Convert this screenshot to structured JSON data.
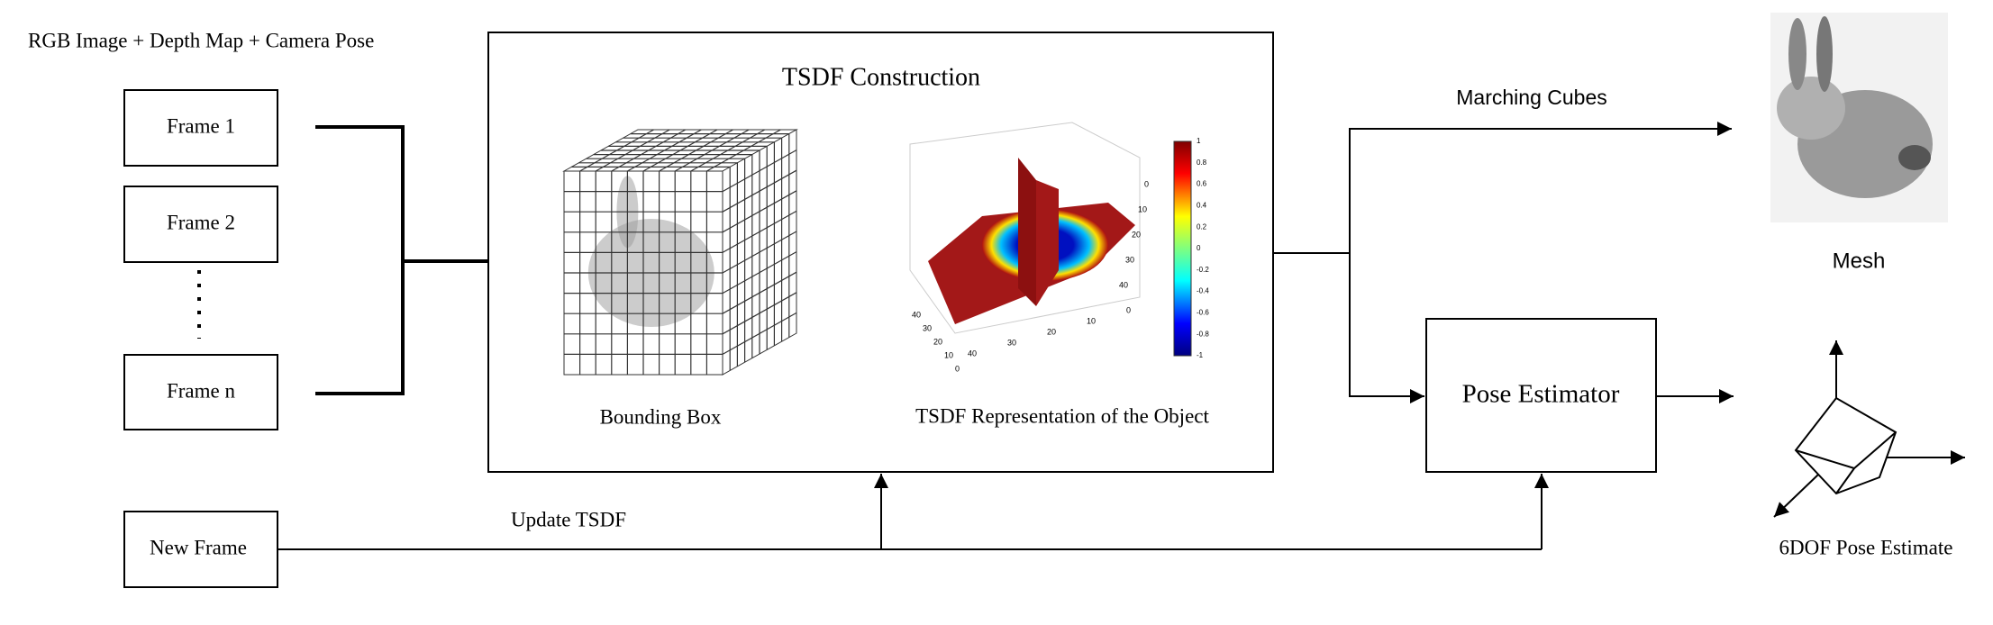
{
  "input_label": "RGB Image + Depth Map + Camera Pose",
  "frames": [
    "Frame 1",
    "Frame 2",
    "Frame n"
  ],
  "new_frame": "New Frame",
  "update_label": "Update TSDF",
  "tsdf_box": {
    "title": "TSDF Construction",
    "left_caption": "Bounding Box",
    "right_caption": "TSDF Representation of the Object",
    "colorbar_ticks": [
      "1",
      "0.8",
      "0.6",
      "0.4",
      "0.2",
      "0",
      "-0.2",
      "-0.4",
      "-0.6",
      "-0.8",
      "-1"
    ],
    "axis_ticks": [
      "0",
      "10",
      "20",
      "30",
      "40"
    ]
  },
  "marching_cubes": "Marching Cubes",
  "mesh_label": "Mesh",
  "pose_estimator": "Pose Estimator",
  "pose_label": "6DOF Pose Estimate"
}
